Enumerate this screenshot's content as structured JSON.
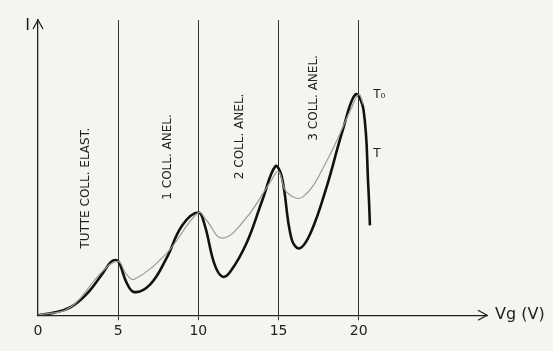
{
  "chart_data": {
    "type": "line",
    "xlabel": "Vg (V)",
    "ylabel": "I",
    "xlim": [
      0,
      28
    ],
    "xticks": [
      0,
      5,
      10,
      15,
      20
    ],
    "ylim": [
      0,
      11.5
    ],
    "yticks": [],
    "grid": true,
    "tick_labels": "x",
    "series": [
      {
        "color": "#9a9a9a",
        "line_style": "solid",
        "x": [
          0,
          2,
          4,
          5,
          5.5,
          6,
          8,
          10,
          10.5,
          11.5,
          13,
          14.5,
          15,
          15.5,
          16.5,
          18,
          19.5,
          20,
          20.3
        ],
        "values": [
          0,
          0.3,
          1.7,
          2.1,
          1.6,
          1.4,
          2.4,
          4.0,
          3.7,
          3.0,
          3.8,
          5.2,
          5.6,
          4.8,
          4.6,
          6.0,
          8.0,
          8.6,
          8.2
        ]
      },
      {
        "color": "#111111",
        "line_style": "solid",
        "x": [
          0,
          1,
          2,
          3,
          4,
          4.6,
          5,
          5.5,
          6,
          7,
          8,
          9,
          10,
          10.4,
          11,
          11.5,
          12,
          13,
          14,
          14.8,
          15.2,
          15.8,
          16.3,
          17,
          18,
          19,
          19.8,
          20.3,
          20.6,
          20.7
        ],
        "values": [
          0,
          0.1,
          0.3,
          0.8,
          1.6,
          2.1,
          2.1,
          1.3,
          0.9,
          1.2,
          2.2,
          3.5,
          4.0,
          3.5,
          2.0,
          1.5,
          1.7,
          2.8,
          4.5,
          5.8,
          5.4,
          3.0,
          2.6,
          3.2,
          5.0,
          7.2,
          8.6,
          8.0,
          5.0,
          3.5
        ]
      }
    ],
    "annotations": [
      {
        "text": "TUTTE COLL. ELAST.",
        "x": 3.0,
        "y": 2.6
      },
      {
        "text": "1 COLL. ANEL.",
        "x": 8.1,
        "y": 4.5
      },
      {
        "text": "2 COLL. ANEL.",
        "x": 12.6,
        "y": 5.3
      },
      {
        "text": "3 COLL. ANEL.",
        "x": 17.2,
        "y": 6.8
      },
      {
        "text": "T₀",
        "x": 20.9,
        "y": 8.6
      },
      {
        "text": "T",
        "x": 20.9,
        "y": 6.3
      }
    ]
  }
}
